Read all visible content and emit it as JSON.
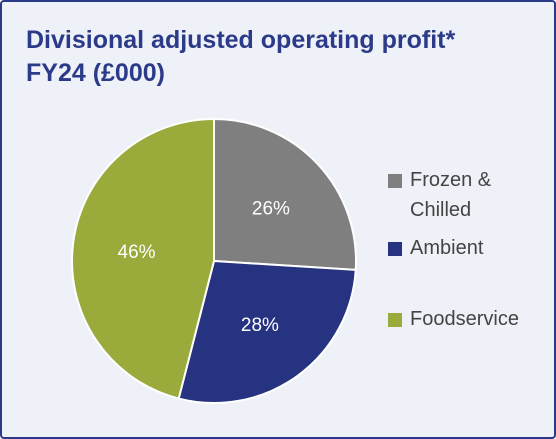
{
  "header": {
    "title_line1": "Divisional adjusted operating profit*",
    "title_line2": "FY24 (£000)"
  },
  "colors": {
    "title": "#2b3a89",
    "border": "#2b3a89",
    "background": "#eef1f7",
    "slice_labels": "#ffffff"
  },
  "chart_data": {
    "type": "pie",
    "title": "Divisional adjusted operating profit* FY24 (£000)",
    "categories": [
      "Frozen & Chilled",
      "Ambient",
      "Foodservice"
    ],
    "values": [
      26,
      28,
      46
    ],
    "labels": [
      "26%",
      "28%",
      "46%"
    ],
    "colors": [
      "#7f7f7f",
      "#263380",
      "#9aaa3b"
    ],
    "start_angle": "12 o'clock",
    "direction": "clockwise",
    "legend": "right"
  },
  "legend": {
    "items": [
      {
        "label": "Frozen &\nChilled",
        "color": "#7f7f7f"
      },
      {
        "label": "Ambient",
        "color": "#263380"
      },
      {
        "label": "Foodservice",
        "color": "#9aaa3b"
      }
    ]
  }
}
